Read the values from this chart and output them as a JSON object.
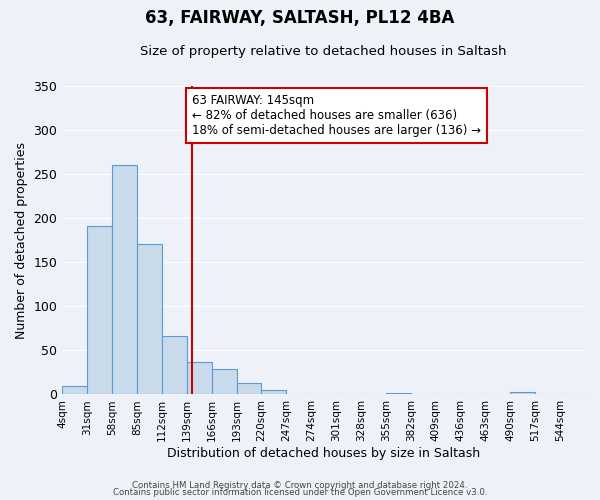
{
  "title": "63, FAIRWAY, SALTASH, PL12 4BA",
  "subtitle": "Size of property relative to detached houses in Saltash",
  "xlabel": "Distribution of detached houses by size in Saltash",
  "ylabel": "Number of detached properties",
  "bin_labels": [
    "4sqm",
    "31sqm",
    "58sqm",
    "85sqm",
    "112sqm",
    "139sqm",
    "166sqm",
    "193sqm",
    "220sqm",
    "247sqm",
    "274sqm",
    "301sqm",
    "328sqm",
    "355sqm",
    "382sqm",
    "409sqm",
    "436sqm",
    "463sqm",
    "490sqm",
    "517sqm",
    "544sqm"
  ],
  "bin_edges": [
    4,
    31,
    58,
    85,
    112,
    139,
    166,
    193,
    220,
    247,
    274,
    301,
    328,
    355,
    382,
    409,
    436,
    463,
    490,
    517,
    544
  ],
  "bar_heights": [
    10,
    191,
    260,
    170,
    66,
    37,
    29,
    13,
    5,
    0,
    0,
    0,
    0,
    2,
    0,
    0,
    0,
    0,
    3,
    0,
    0
  ],
  "bar_color": "#c9daea",
  "bar_edge_color": "#5b9bd5",
  "property_line_x": 145,
  "red_line_color": "#cc0000",
  "annotation_text_line1": "63 FAIRWAY: 145sqm",
  "annotation_text_line2": "← 82% of detached houses are smaller (636)",
  "annotation_text_line3": "18% of semi-detached houses are larger (136) →",
  "annotation_box_color": "#ffffff",
  "annotation_box_edge": "#cc0000",
  "ylim": [
    0,
    350
  ],
  "yticks": [
    0,
    50,
    100,
    150,
    200,
    250,
    300,
    350
  ],
  "footer_line1": "Contains HM Land Registry data © Crown copyright and database right 2024.",
  "footer_line2": "Contains public sector information licensed under the Open Government Licence v3.0.",
  "background_color": "#eef2f8",
  "plot_background_color": "#eef2f8"
}
